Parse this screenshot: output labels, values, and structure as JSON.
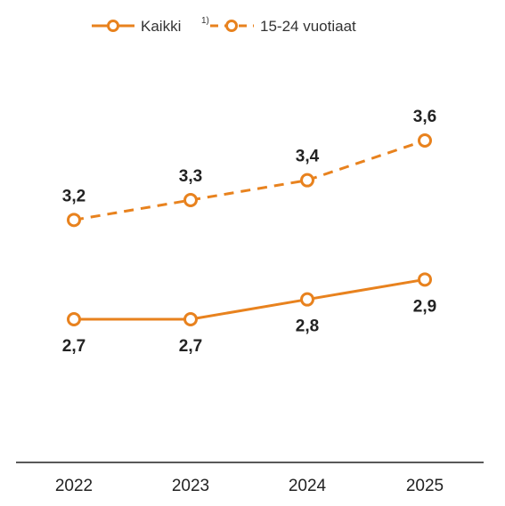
{
  "chart_data": {
    "type": "line",
    "categories": [
      "2022",
      "2023",
      "2024",
      "2025"
    ],
    "series": [
      {
        "name": "Kaikki",
        "note": "1)",
        "values": [
          2.7,
          2.7,
          2.8,
          2.9
        ],
        "labels": [
          "2,7",
          "2,7",
          "2,8",
          "2,9"
        ],
        "style": "solid",
        "label_position": "below"
      },
      {
        "name": "15-24 vuotiaat",
        "values": [
          3.2,
          3.3,
          3.4,
          3.6
        ],
        "labels": [
          "3,2",
          "3,3",
          "3,4",
          "3,6"
        ],
        "style": "dashed",
        "label_position": "above"
      }
    ],
    "title": "",
    "xlabel": "",
    "ylabel": "",
    "ylim": [
      2.0,
      4.0
    ],
    "grid": false,
    "legend_position": "top",
    "color": "#e8821e"
  }
}
